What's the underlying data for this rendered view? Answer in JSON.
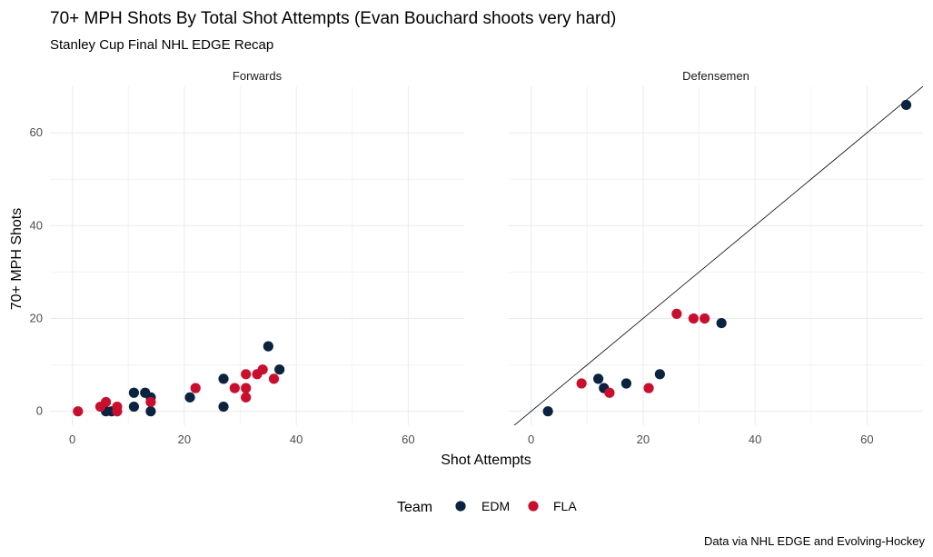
{
  "chart_data": {
    "type": "scatter",
    "title": "70+ MPH Shots By Total Shot Attempts (Evan Bouchard shoots very hard)",
    "subtitle": "Stanley Cup Final NHL EDGE Recap",
    "caption": "Data via NHL EDGE and Evolving-Hockey",
    "xlabel": "Shot Attempts",
    "ylabel": "70+ MPH Shots",
    "xlim": [
      -4,
      70
    ],
    "ylim": [
      -3,
      70
    ],
    "x_ticks": [
      0,
      20,
      40,
      60
    ],
    "y_ticks": [
      0,
      20,
      40,
      60
    ],
    "grid": true,
    "legend": {
      "title": "Team",
      "placement": "bottom",
      "entries": [
        {
          "name": "EDM",
          "color": "#0c2340"
        },
        {
          "name": "FLA",
          "color": "#c8102e"
        }
      ]
    },
    "panels": [
      {
        "label": "Forwards",
        "reference_line": false,
        "series": [
          {
            "name": "EDM",
            "color": "#0c2340",
            "points": [
              [
                6,
                0
              ],
              [
                7,
                0
              ],
              [
                11,
                4
              ],
              [
                11,
                1
              ],
              [
                13,
                4
              ],
              [
                14,
                3
              ],
              [
                14,
                0
              ],
              [
                21,
                3
              ],
              [
                27,
                7
              ],
              [
                27,
                1
              ],
              [
                35,
                14
              ],
              [
                37,
                9
              ]
            ]
          },
          {
            "name": "FLA",
            "color": "#c8102e",
            "points": [
              [
                1,
                0
              ],
              [
                5,
                1
              ],
              [
                6,
                2
              ],
              [
                8,
                1
              ],
              [
                8,
                0
              ],
              [
                14,
                2
              ],
              [
                22,
                5
              ],
              [
                29,
                5
              ],
              [
                31,
                8
              ],
              [
                31,
                5
              ],
              [
                31,
                3
              ],
              [
                33,
                8
              ],
              [
                34,
                9
              ],
              [
                36,
                7
              ]
            ]
          }
        ]
      },
      {
        "label": "Defensemen",
        "reference_line": true,
        "series": [
          {
            "name": "EDM",
            "color": "#0c2340",
            "points": [
              [
                3,
                0
              ],
              [
                12,
                7
              ],
              [
                13,
                5
              ],
              [
                17,
                6
              ],
              [
                23,
                8
              ],
              [
                34,
                19
              ],
              [
                67,
                66
              ]
            ]
          },
          {
            "name": "FLA",
            "color": "#c8102e",
            "points": [
              [
                9,
                6
              ],
              [
                14,
                4
              ],
              [
                21,
                5
              ],
              [
                26,
                21
              ],
              [
                29,
                20
              ],
              [
                31,
                20
              ]
            ]
          }
        ]
      }
    ]
  }
}
